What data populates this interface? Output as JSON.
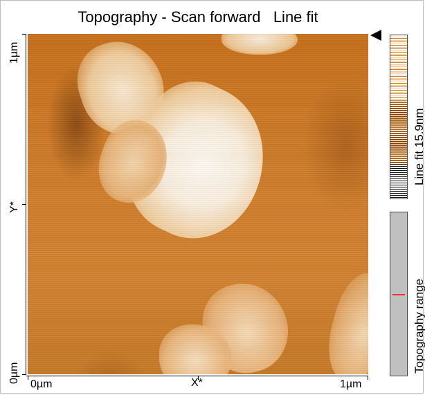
{
  "title": "Topography - Scan forward   Line fit",
  "axes": {
    "y_top": "1µm",
    "y_mid": "Y*",
    "y_bottom": "0µm",
    "x_left": "0µm",
    "x_mid": "X*",
    "x_right": "1µm"
  },
  "colorbar_label": "Line fit 15.9nm",
  "range_label": "Topography range",
  "colors": {
    "base": "#d07e2a",
    "grain": "#f8efe1",
    "marker": "#e33333"
  }
}
